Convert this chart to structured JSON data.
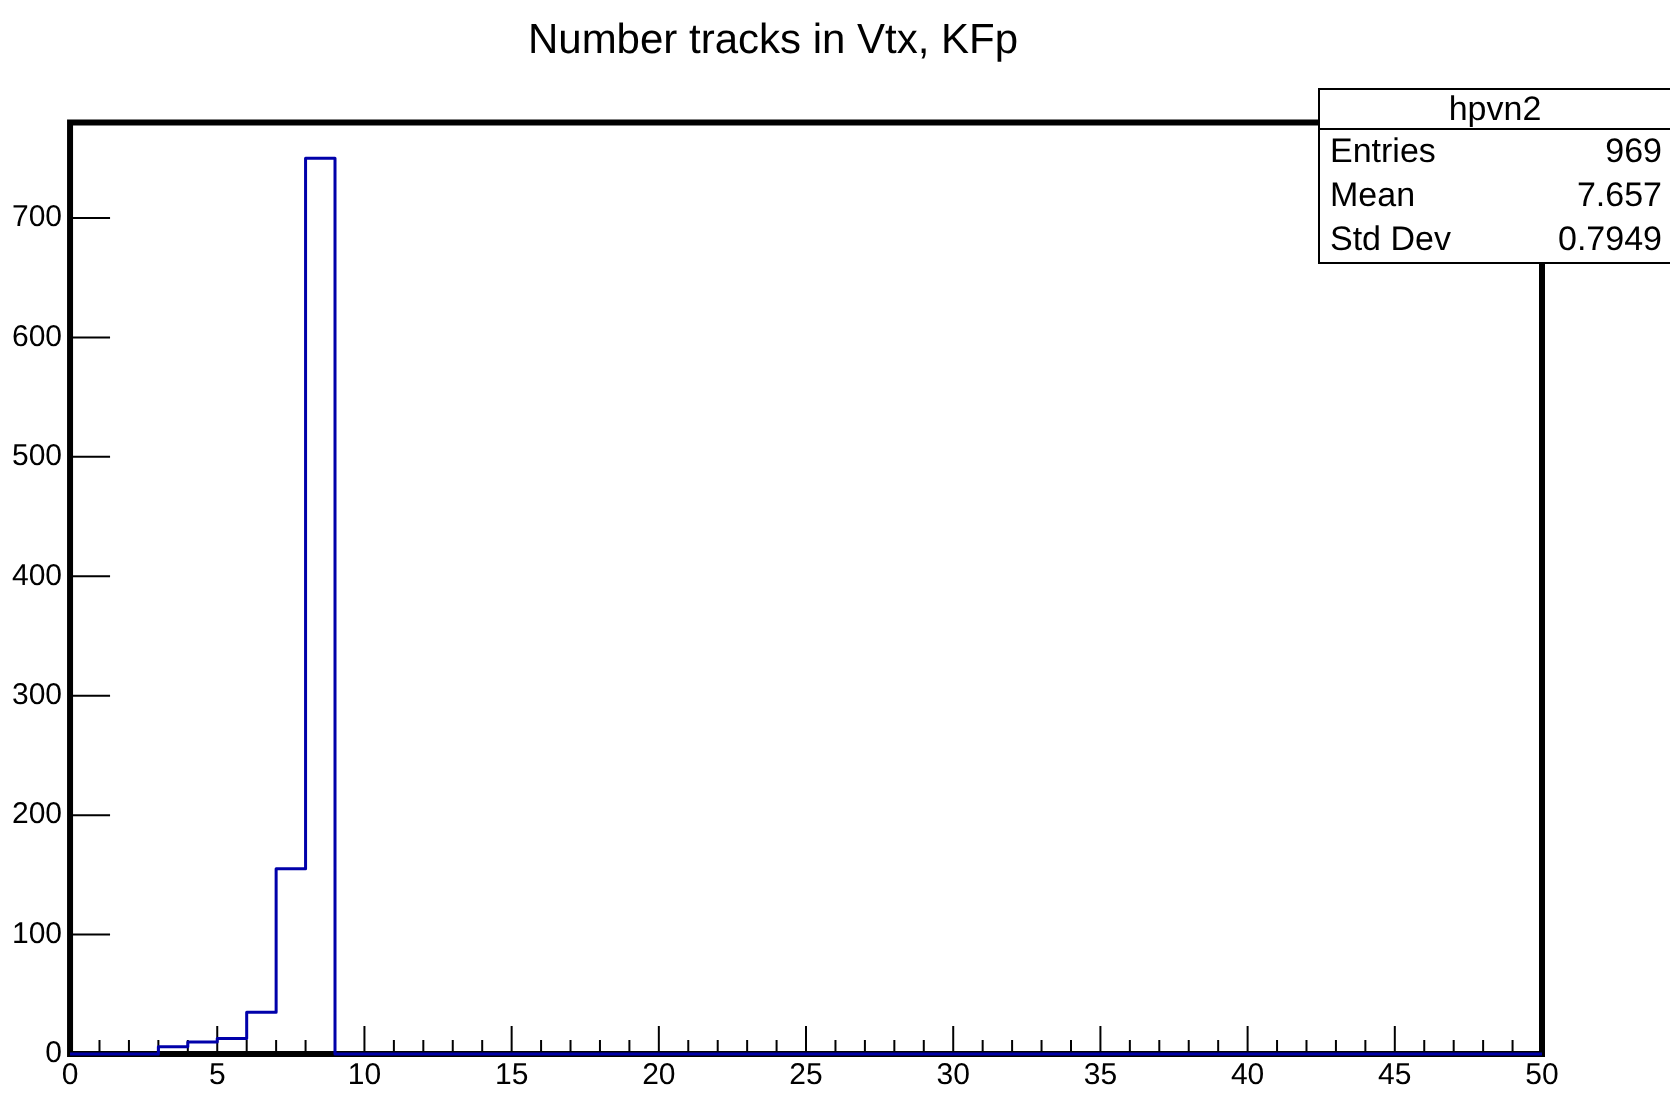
{
  "chart_data": {
    "type": "histogram",
    "title": "Number tracks in Vtx, KFp",
    "bins": [
      0,
      1,
      2,
      3,
      4,
      5,
      6,
      7,
      8,
      9,
      10,
      11,
      12,
      13,
      14,
      15,
      16,
      17,
      18,
      19,
      20,
      21,
      22,
      23,
      24,
      25,
      26,
      27,
      28,
      29,
      30,
      31,
      32,
      33,
      34,
      35,
      36,
      37,
      38,
      39,
      40,
      41,
      42,
      43,
      44,
      45,
      46,
      47,
      48,
      49,
      50
    ],
    "values": [
      0,
      0,
      0,
      6,
      10,
      13,
      35,
      155,
      750,
      0,
      0,
      0,
      0,
      0,
      0,
      0,
      0,
      0,
      0,
      0,
      0,
      0,
      0,
      0,
      0,
      0,
      0,
      0,
      0,
      0,
      0,
      0,
      0,
      0,
      0,
      0,
      0,
      0,
      0,
      0,
      0,
      0,
      0,
      0,
      0,
      0,
      0,
      0,
      0,
      0
    ],
    "color": "#0000aa",
    "xlim": [
      0,
      50
    ],
    "xticks": [
      0,
      5,
      10,
      15,
      20,
      25,
      30,
      35,
      40,
      45,
      50
    ],
    "ylim": [
      0,
      780
    ],
    "yticks": [
      0,
      100,
      200,
      300,
      400,
      500,
      600,
      700
    ],
    "grid": false,
    "legend": false,
    "annotations": [
      "hpvn2",
      "Entries",
      "969",
      "Mean",
      "7.657",
      "Std Dev",
      "0.7949"
    ]
  }
}
